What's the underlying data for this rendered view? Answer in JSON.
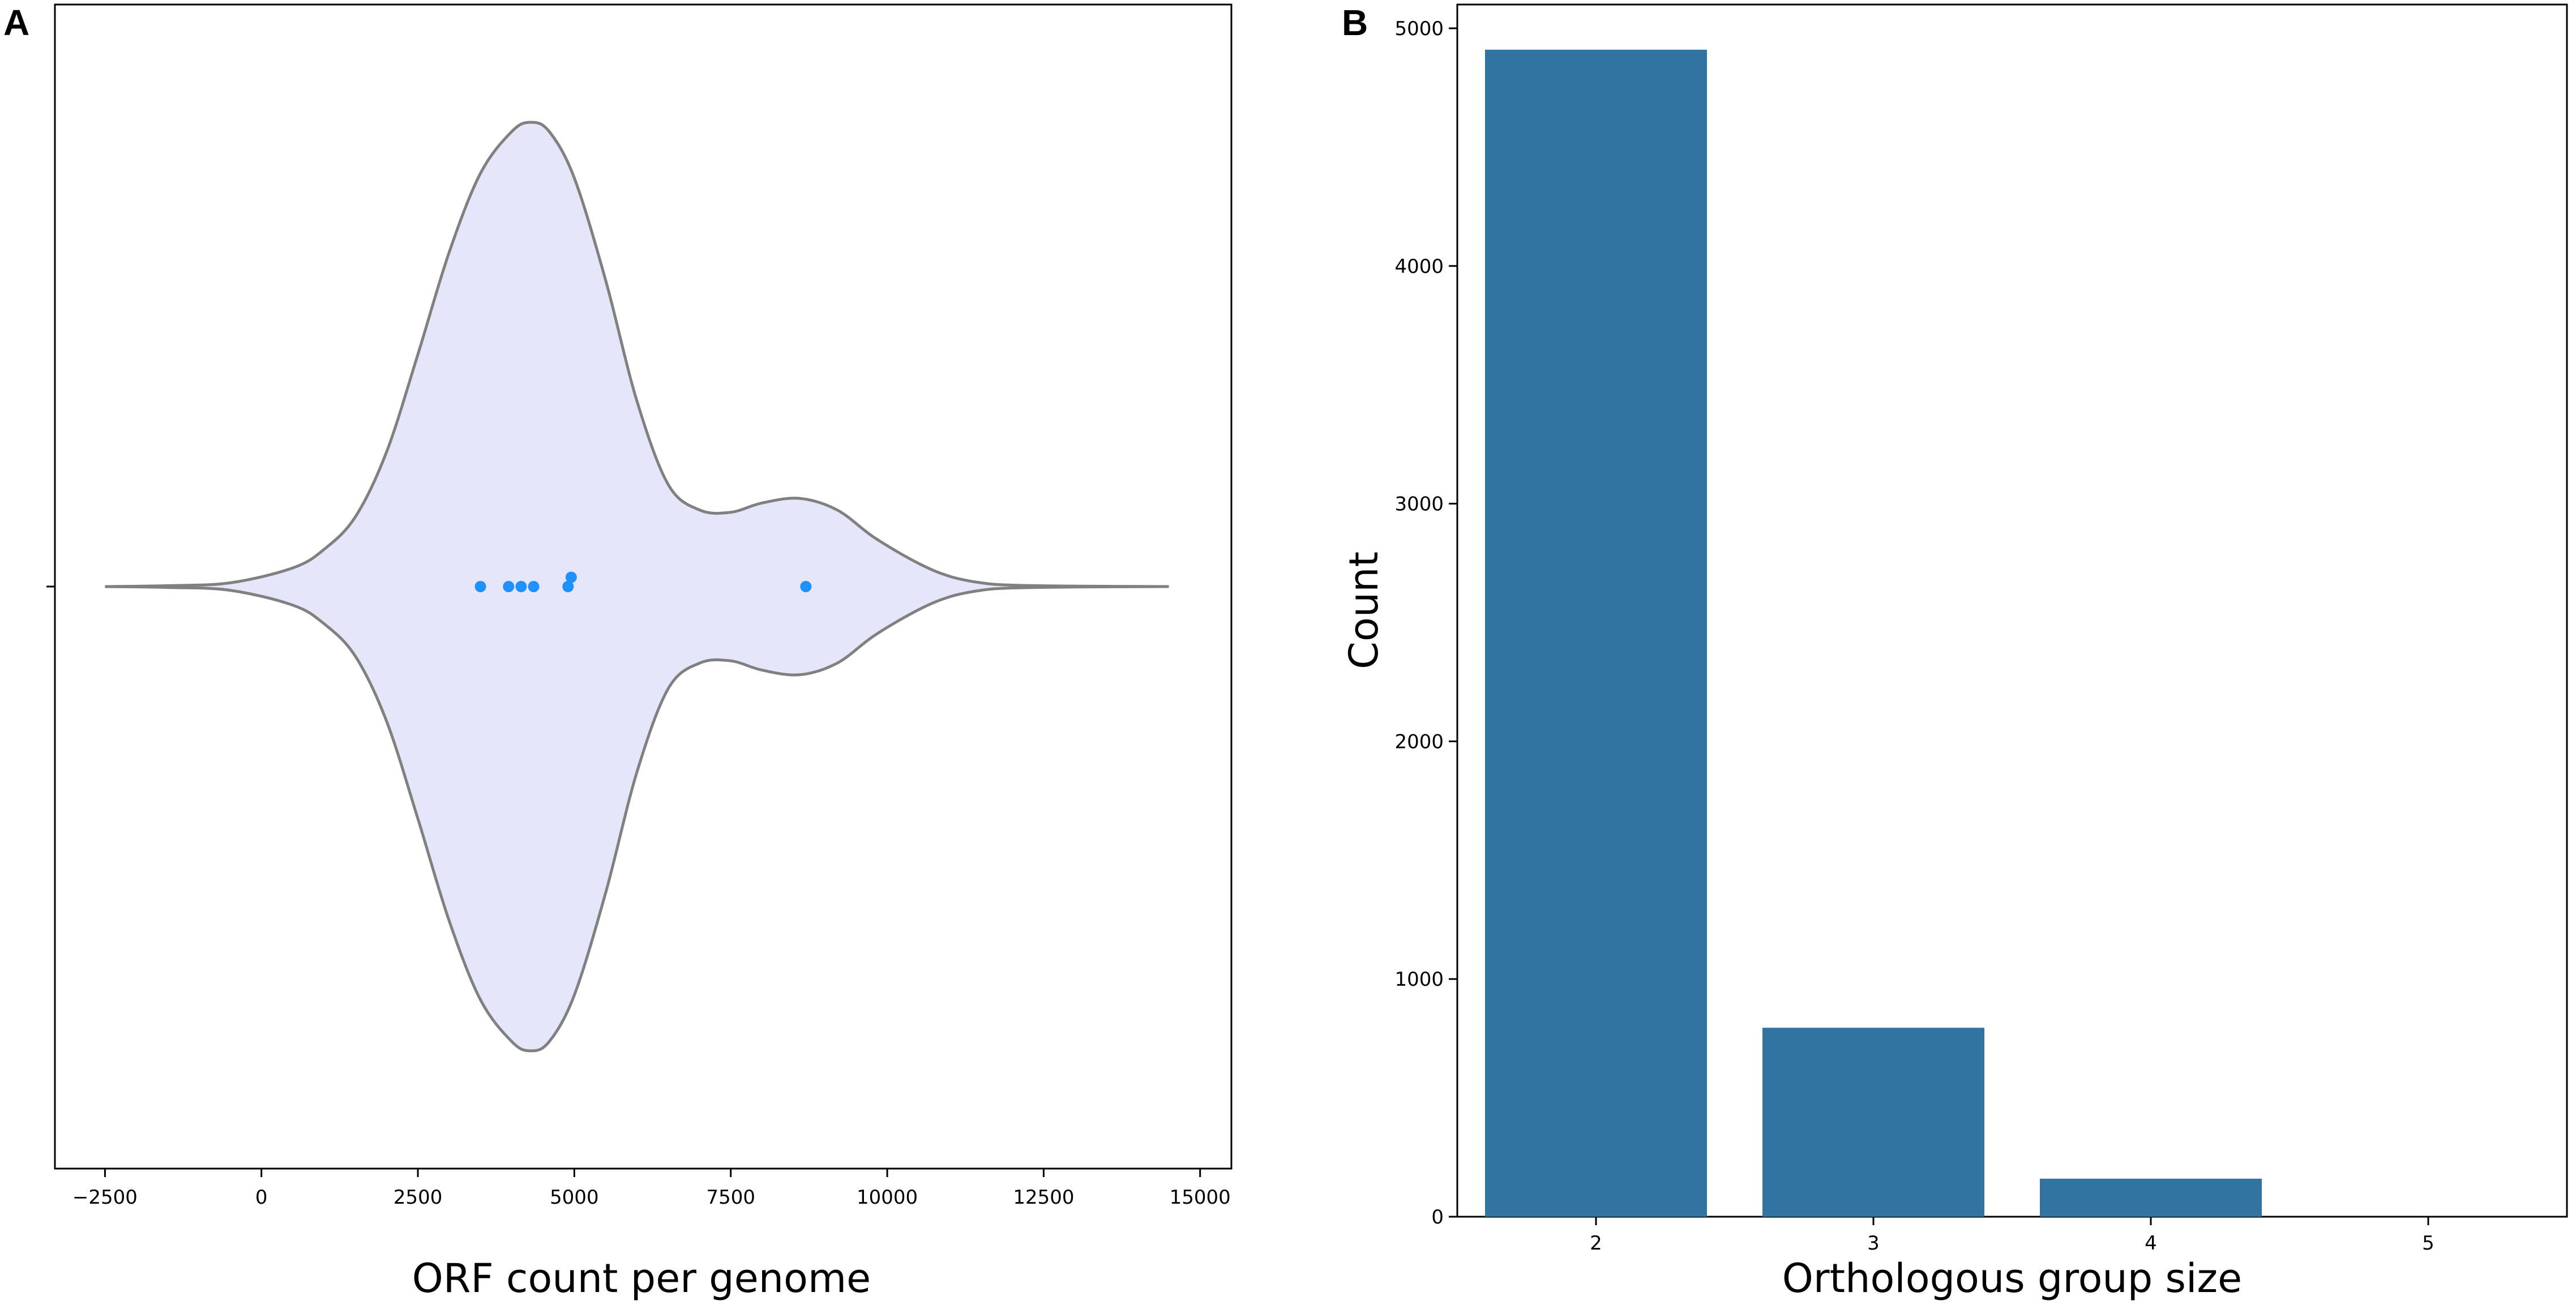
{
  "panels": {
    "a": {
      "letter": "A"
    },
    "b": {
      "letter": "B"
    }
  },
  "chart_data": [
    {
      "type": "violin",
      "panel": "A",
      "xlabel": "ORF count per genome",
      "ylabel": "",
      "xlim": [
        -3300,
        15500
      ],
      "xticks": [
        -2500,
        0,
        2500,
        5000,
        7500,
        10000,
        12500,
        15000
      ],
      "xtick_labels": [
        "−2500",
        "0",
        "2500",
        "5000",
        "7500",
        "10000",
        "12500",
        "15000"
      ],
      "fill_color": "#e6e6fa",
      "line_color": "#808080",
      "point_color": "#1e90ff",
      "density": {
        "x": [
          -2500,
          -1500,
          -500,
          500,
          1000,
          1500,
          2000,
          2500,
          3000,
          3500,
          4000,
          4300,
          4600,
          5000,
          5500,
          6000,
          6500,
          7000,
          7500,
          8000,
          8600,
          9200,
          9800,
          10500,
          11000,
          11500,
          12000,
          13000,
          14500
        ],
        "width": [
          0,
          0.002,
          0.008,
          0.04,
          0.08,
          0.15,
          0.29,
          0.5,
          0.72,
          0.89,
          0.98,
          1.0,
          0.98,
          0.88,
          0.66,
          0.4,
          0.22,
          0.165,
          0.16,
          0.18,
          0.19,
          0.165,
          0.105,
          0.05,
          0.022,
          0.008,
          0.003,
          0.001,
          0
        ]
      },
      "points": [
        {
          "x": 3500,
          "jitter": 0
        },
        {
          "x": 3950,
          "jitter": 0
        },
        {
          "x": 4150,
          "jitter": 0
        },
        {
          "x": 4350,
          "jitter": 0
        },
        {
          "x": 4900,
          "jitter": 0
        },
        {
          "x": 4950,
          "jitter": 0.02
        },
        {
          "x": 8700,
          "jitter": 0
        }
      ]
    },
    {
      "type": "bar",
      "panel": "B",
      "xlabel": "Orthologous group size",
      "ylabel": "Count",
      "categories": [
        "2",
        "3",
        "4",
        "5"
      ],
      "values": [
        4910,
        795,
        160,
        0
      ],
      "ylim": [
        0,
        5100
      ],
      "yticks": [
        0,
        1000,
        2000,
        3000,
        4000,
        5000
      ],
      "bar_color": "#3274a1"
    }
  ]
}
